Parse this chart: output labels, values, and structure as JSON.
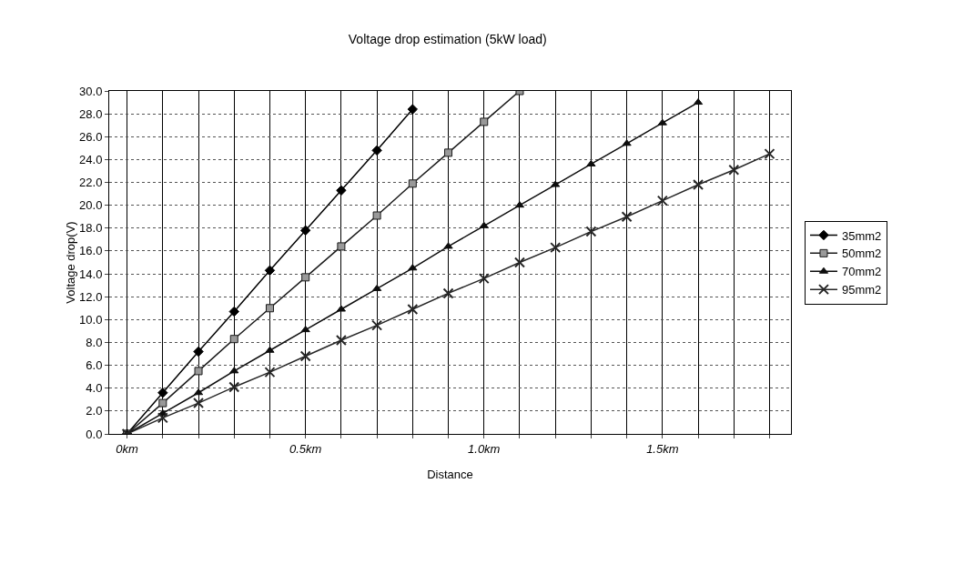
{
  "chart_data": {
    "type": "line",
    "title": "Voltage drop estimation (5kW load)",
    "xlabel": "Distance",
    "ylabel": "Voltage drop(V)",
    "xlim": [
      -0.05,
      1.86
    ],
    "xticks": [
      {
        "value": 0,
        "label": "0km"
      },
      {
        "value": 0.1,
        "label": null
      },
      {
        "value": 0.2,
        "label": null
      },
      {
        "value": 0.3,
        "label": null
      },
      {
        "value": 0.4,
        "label": null
      },
      {
        "value": 0.5,
        "label": "0.5km"
      },
      {
        "value": 0.6,
        "label": null
      },
      {
        "value": 0.7,
        "label": null
      },
      {
        "value": 0.8,
        "label": null
      },
      {
        "value": 0.9,
        "label": null
      },
      {
        "value": 1.0,
        "label": "1.0km"
      },
      {
        "value": 1.1,
        "label": null
      },
      {
        "value": 1.2,
        "label": null
      },
      {
        "value": 1.3,
        "label": null
      },
      {
        "value": 1.4,
        "label": null
      },
      {
        "value": 1.5,
        "label": "1.5km"
      },
      {
        "value": 1.6,
        "label": null
      },
      {
        "value": 1.7,
        "label": null
      },
      {
        "value": 1.8,
        "label": null
      }
    ],
    "ylim": [
      0,
      30
    ],
    "yticks": [
      {
        "value": 0,
        "label": "0.0"
      },
      {
        "value": 2,
        "label": "2.0"
      },
      {
        "value": 4,
        "label": "4.0"
      },
      {
        "value": 6,
        "label": "6.0"
      },
      {
        "value": 8,
        "label": "8.0"
      },
      {
        "value": 10,
        "label": "10.0"
      },
      {
        "value": 12,
        "label": "12.0"
      },
      {
        "value": 14,
        "label": "14.0"
      },
      {
        "value": 16,
        "label": "16.0"
      },
      {
        "value": 18,
        "label": "18.0"
      },
      {
        "value": 20,
        "label": "20.0"
      },
      {
        "value": 22,
        "label": "22.0"
      },
      {
        "value": 24,
        "label": "24.0"
      },
      {
        "value": 26,
        "label": "26.0"
      },
      {
        "value": 28,
        "label": "28.0"
      },
      {
        "value": 30,
        "label": "30.0"
      }
    ],
    "grid": true,
    "legend": "right",
    "line_style": "solid",
    "series": [
      {
        "name": "35mm2",
        "color": "#000000",
        "marker": "diamond",
        "x": [
          0,
          0.1,
          0.2,
          0.3,
          0.4,
          0.5,
          0.6,
          0.7,
          0.8
        ],
        "values": [
          0,
          3.6,
          7.2,
          10.7,
          14.3,
          17.8,
          21.3,
          24.8,
          28.4
        ]
      },
      {
        "name": "50mm2",
        "color": "#1a1a1a",
        "marker": "square",
        "x": [
          0,
          0.1,
          0.2,
          0.3,
          0.4,
          0.5,
          0.6,
          0.7,
          0.8,
          0.9,
          1.0,
          1.1
        ],
        "values": [
          0,
          2.7,
          5.5,
          8.3,
          11.0,
          13.7,
          16.4,
          19.1,
          21.9,
          24.6,
          27.3,
          30.0
        ]
      },
      {
        "name": "70mm2",
        "color": "#0d0d0d",
        "marker": "triangle",
        "x": [
          0,
          0.1,
          0.2,
          0.3,
          0.4,
          0.5,
          0.6,
          0.7,
          0.8,
          0.9,
          1.0,
          1.1,
          1.2,
          1.3,
          1.4,
          1.5,
          1.6
        ],
        "values": [
          0,
          1.8,
          3.6,
          5.5,
          7.3,
          9.1,
          10.9,
          12.7,
          14.5,
          16.4,
          18.2,
          20.0,
          21.8,
          23.6,
          25.4,
          27.2,
          29.0
        ]
      },
      {
        "name": "95mm2",
        "color": "#262626",
        "marker": "cross",
        "x": [
          0,
          0.1,
          0.2,
          0.3,
          0.4,
          0.5,
          0.6,
          0.7,
          0.8,
          0.9,
          1.0,
          1.1,
          1.2,
          1.3,
          1.4,
          1.5,
          1.6,
          1.7,
          1.8
        ],
        "values": [
          0,
          1.4,
          2.7,
          4.1,
          5.4,
          6.8,
          8.2,
          9.5,
          10.9,
          12.3,
          13.6,
          15.0,
          16.3,
          17.7,
          19.0,
          20.4,
          21.8,
          23.1,
          24.5
        ]
      }
    ]
  }
}
